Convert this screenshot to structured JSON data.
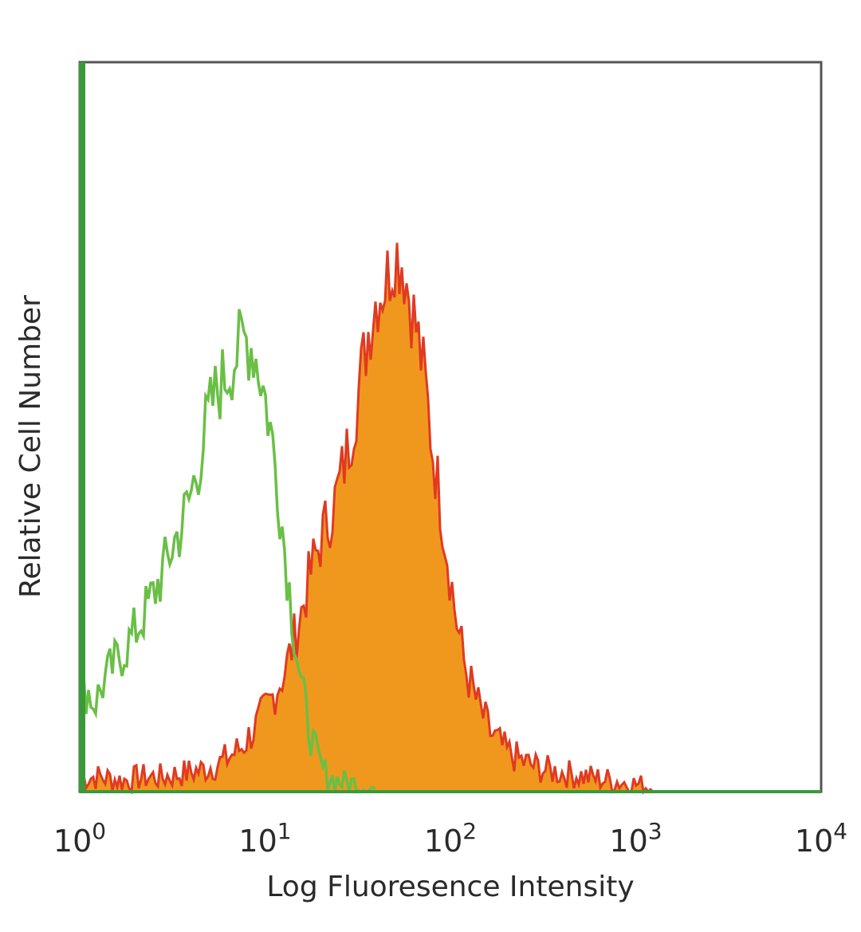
{
  "chart_data": {
    "type": "area",
    "title": "",
    "xlabel": "Log Fluoresence Intensity",
    "ylabel": "Relative Cell Number",
    "x_scale": "log",
    "xlim": [
      1,
      10000
    ],
    "ylim": [
      0,
      100
    ],
    "grid": false,
    "legend": "none",
    "x_ticks": [
      {
        "base": "10",
        "exp": "0"
      },
      {
        "base": "10",
        "exp": "1"
      },
      {
        "base": "10",
        "exp": "2"
      },
      {
        "base": "10",
        "exp": "3"
      },
      {
        "base": "10",
        "exp": "4"
      }
    ],
    "series": [
      {
        "role": "isotype-control",
        "style": "line",
        "color": "#6abf45",
        "x": [
          1.02,
          1.1,
          1.2,
          1.35,
          1.5,
          1.7,
          1.9,
          2.1,
          2.3,
          2.6,
          2.9,
          3.2,
          3.5,
          3.9,
          4.3,
          4.8,
          5.3,
          5.8,
          6.4,
          7.0,
          7.8,
          8.6,
          9.5,
          10.5,
          11.6,
          12.8,
          14.2,
          15.8,
          17.5,
          19.5,
          22,
          25,
          28,
          32,
          36,
          40
        ],
        "y": [
          13,
          14,
          12,
          15,
          17,
          19,
          21,
          23,
          25,
          28,
          31,
          34,
          36,
          40,
          44,
          50,
          54,
          56,
          58,
          60,
          62,
          61,
          57,
          51,
          43,
          33,
          23,
          14,
          8,
          4,
          2,
          1.5,
          1.2,
          1.0,
          0.6,
          0.3
        ]
      },
      {
        "role": "stained-sample",
        "style": "filled",
        "color": "#f0981e",
        "edge_color": "#e03a22",
        "x": [
          1.02,
          1.3,
          1.7,
          2.2,
          2.8,
          3.6,
          4.6,
          5.8,
          7.4,
          9.0,
          11.0,
          13.0,
          15.5,
          18.0,
          21.0,
          24.0,
          28.0,
          32.0,
          36.0,
          40.0,
          45.0,
          50.0,
          55.0,
          60.0,
          66.0,
          73.0,
          80.0,
          88.0,
          97.0,
          107.0,
          120.0,
          140.0,
          165.0,
          200.0,
          250.0,
          320.0,
          420.0,
          560.0,
          750.0,
          1000.0,
          1300.0
        ],
        "y": [
          2,
          2,
          1.5,
          2,
          2,
          2.5,
          3,
          4,
          6,
          9,
          13,
          17,
          24,
          31,
          36,
          40,
          47,
          55,
          63,
          68,
          70,
          74,
          73,
          68,
          63,
          56,
          47,
          40,
          32,
          24,
          17,
          12,
          8,
          5.5,
          4,
          3,
          2.5,
          2,
          1.5,
          1,
          0.5
        ]
      }
    ]
  }
}
